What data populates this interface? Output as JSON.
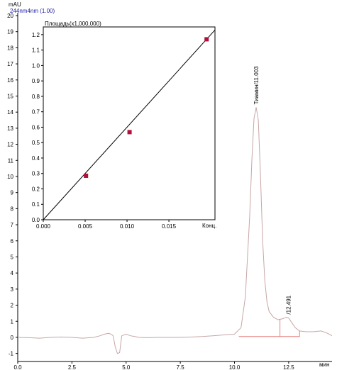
{
  "chart_data": [
    {
      "type": "line",
      "y_unit": "mAU",
      "trace_label": "244nm4nm (1.00)",
      "x_unit": "мин",
      "xlim": [
        0,
        14.5
      ],
      "ylim": [
        -1.5,
        20
      ],
      "x_ticks": [
        "0.0",
        "2.5",
        "5.0",
        "7.5",
        "10.0",
        "12.5"
      ],
      "y_ticks": [
        "-1",
        "0",
        "1",
        "2",
        "3",
        "4",
        "5",
        "6",
        "7",
        "8",
        "9",
        "10",
        "11",
        "12",
        "13",
        "14",
        "15",
        "16",
        "17",
        "18",
        "19",
        "20"
      ],
      "grid": false,
      "series": [
        {
          "color": "#c8a6a6",
          "x": [
            0.0,
            0.5,
            1.0,
            1.5,
            2.0,
            2.5,
            3.0,
            3.5,
            3.8,
            4.0,
            4.2,
            4.3,
            4.4,
            4.5,
            4.6,
            4.7,
            4.8,
            5.0,
            5.2,
            5.4,
            5.6,
            6.0,
            6.5,
            7.0,
            7.5,
            8.0,
            8.5,
            9.0,
            9.5,
            10.0,
            10.3,
            10.5,
            10.7,
            10.8,
            10.9,
            11.0,
            11.1,
            11.2,
            11.3,
            11.4,
            11.5,
            11.6,
            11.8,
            12.0,
            12.2,
            12.3,
            12.4,
            12.5,
            12.6,
            12.8,
            13.0,
            13.3,
            13.6,
            14.0,
            14.3,
            14.5
          ],
          "y": [
            0.0,
            -0.02,
            -0.05,
            0.0,
            0.02,
            0.0,
            -0.05,
            0.0,
            0.1,
            0.2,
            0.25,
            0.2,
            0.1,
            -0.6,
            -1.0,
            -0.95,
            0.1,
            0.2,
            0.1,
            0.05,
            0.0,
            -0.02,
            0.0,
            0.0,
            0.0,
            0.02,
            0.05,
            0.1,
            0.15,
            0.2,
            0.6,
            2.5,
            7.5,
            11.0,
            13.6,
            14.3,
            13.5,
            10.0,
            6.0,
            3.5,
            2.2,
            1.6,
            1.25,
            1.1,
            1.15,
            1.2,
            1.25,
            1.2,
            1.0,
            0.6,
            0.4,
            0.35,
            0.35,
            0.4,
            0.25,
            0.1
          ]
        }
      ],
      "peaks": [
        {
          "label": "Тиамин/11.003",
          "x": 11.003
        },
        {
          "label": "/12.491",
          "x": 12.491
        }
      ],
      "integration_baselines": [
        {
          "color": "#e06060",
          "x": [
            10.2,
            12.1
          ],
          "y": [
            0.05,
            0.05
          ],
          "drop_at": 12.1
        },
        {
          "color": "#e06060",
          "x": [
            12.1,
            13.0
          ],
          "y": [
            0.05,
            0.05
          ],
          "drop_at": 13.0
        }
      ]
    },
    {
      "type": "scatter",
      "title": "Площадь(x1,000,000)",
      "xlabel": "Конц.",
      "xlim": [
        0,
        0.0205
      ],
      "ylim": [
        0,
        1.25
      ],
      "x_ticks": [
        "0.000",
        "0.005",
        "0.010",
        "0.015"
      ],
      "y_ticks": [
        "0.0",
        "0.1",
        "0.2",
        "0.3",
        "0.4",
        "0.5",
        "0.6",
        "0.7",
        "0.8",
        "0.9",
        "1.0",
        "1.1",
        "1.2"
      ],
      "grid": false,
      "points": {
        "color": "#b0103a",
        "x": [
          0.0051,
          0.0103,
          0.0195
        ],
        "y": [
          0.285,
          0.568,
          1.17
        ]
      },
      "fit_line": {
        "color": "#000000",
        "x": [
          0.0,
          0.0205
        ],
        "y": [
          0.0,
          1.23
        ]
      }
    }
  ]
}
